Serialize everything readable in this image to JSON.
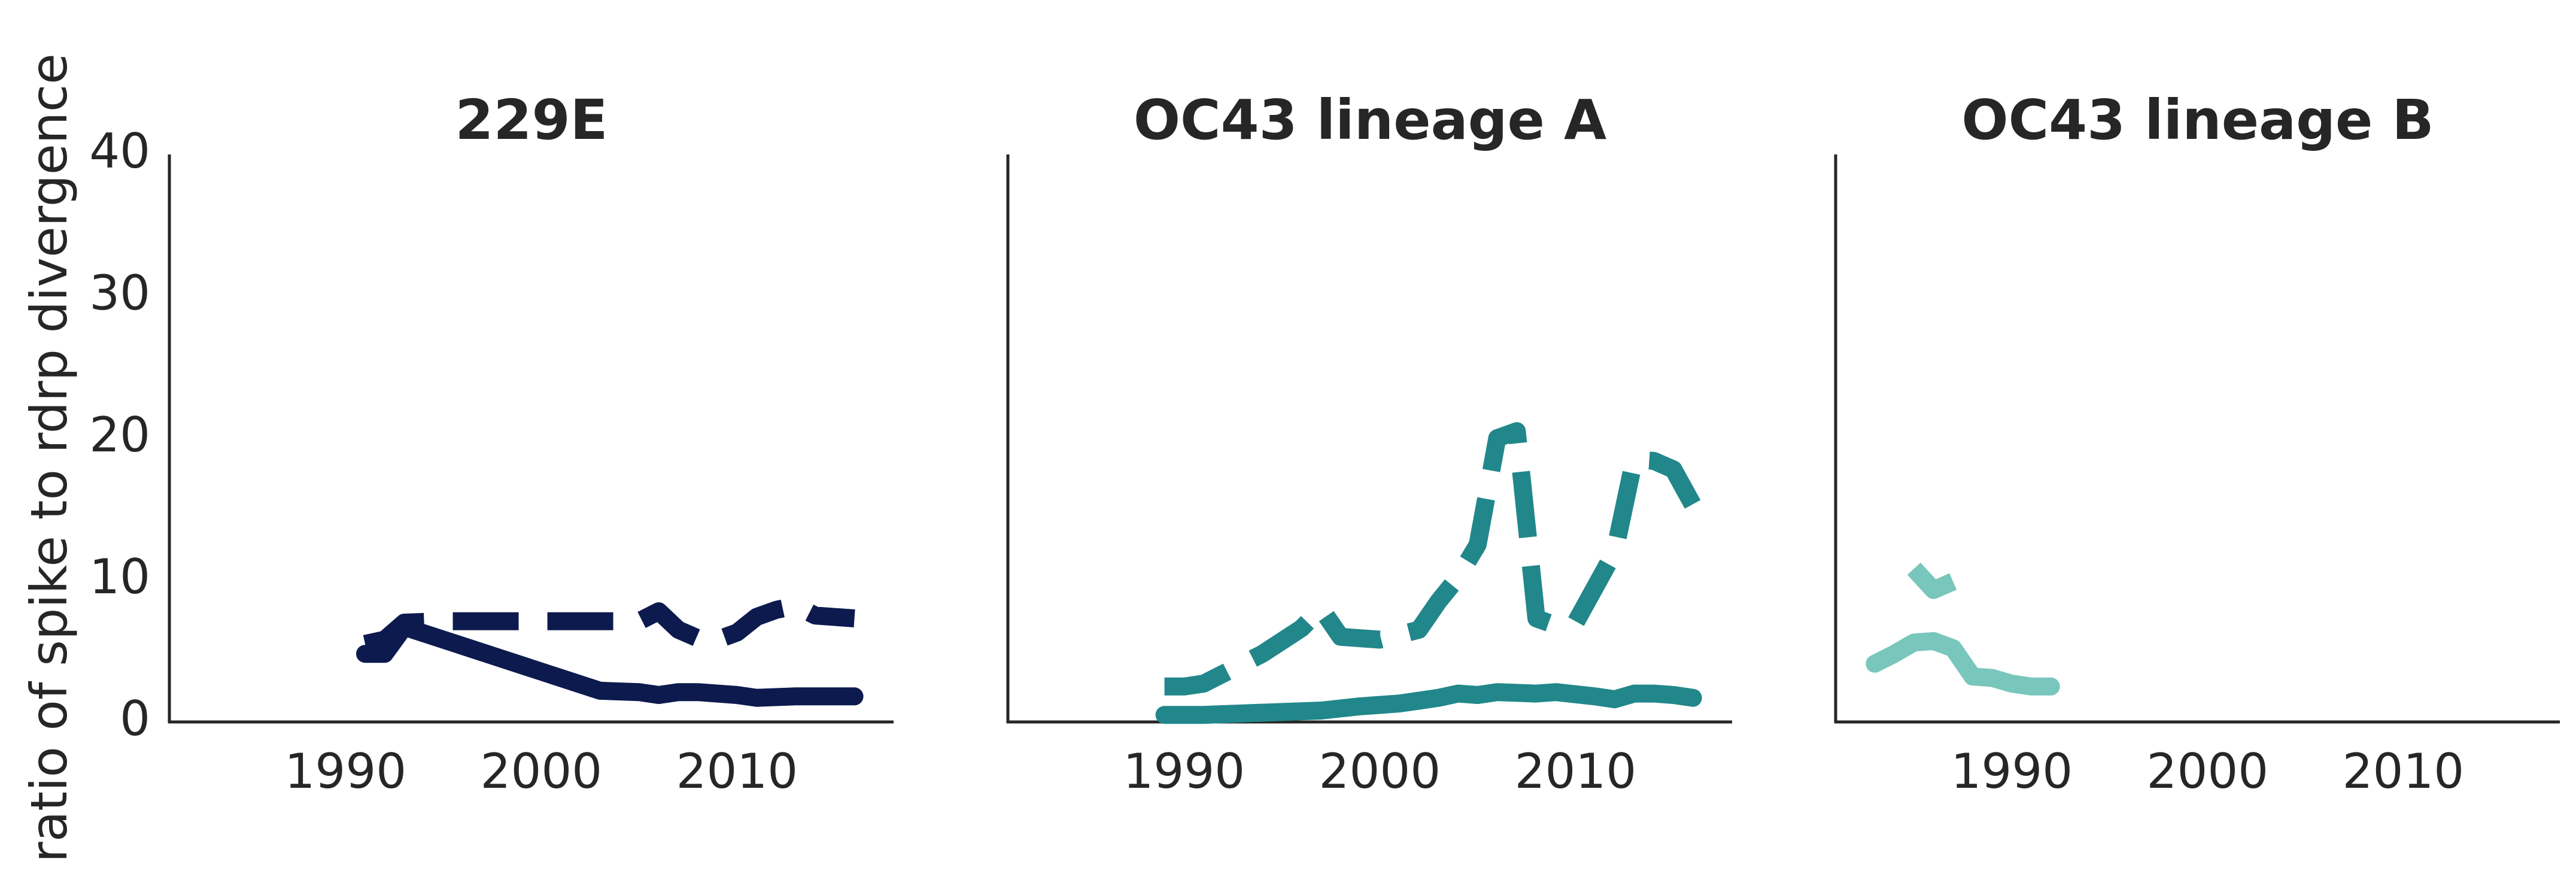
{
  "chart_data": {
    "type": "line",
    "ylabel": "ratio of spike to rdrp divergence",
    "ylim": [
      0,
      40
    ],
    "xlim": [
      1981,
      2018
    ],
    "yticks": [
      0,
      10,
      20,
      30,
      40
    ],
    "xticks": [
      1990,
      2000,
      2010
    ],
    "grid": false,
    "legend": "none",
    "panels": [
      {
        "title": "229E",
        "color": "#0c1a4e",
        "series": [
          {
            "style": "dashed",
            "x": [
              1991,
              1992,
              1993,
              1995,
              2000,
              2003,
              2005,
              2006,
              2007,
              2008,
              2009,
              2010,
              2011,
              2012,
              2013,
              2014,
              2016
            ],
            "y": [
              5.5,
              5.8,
              7.0,
              7.1,
              7.1,
              7.1,
              7.1,
              7.8,
              6.5,
              5.9,
              5.8,
              6.3,
              7.4,
              7.9,
              8.2,
              7.5,
              7.3
            ]
          },
          {
            "style": "solid",
            "x": [
              1991,
              1992,
              1993,
              2003,
              2005,
              2006,
              2007,
              2008,
              2010,
              2011,
              2013,
              2016
            ],
            "y": [
              4.8,
              4.8,
              6.7,
              2.2,
              2.1,
              1.9,
              2.1,
              2.1,
              1.9,
              1.7,
              1.8,
              1.8
            ]
          }
        ]
      },
      {
        "title": "OC43 lineage A",
        "color": "#21878a",
        "series": [
          {
            "style": "dashed",
            "x": [
              1989,
              1990,
              1991,
              1994,
              1996,
              1997,
              1998,
              2000,
              2002,
              2003,
              2004,
              2005,
              2006,
              2007,
              2008,
              2009,
              2010,
              2012,
              2013,
              2014,
              2015,
              2016
            ],
            "y": [
              2.5,
              2.5,
              2.7,
              4.8,
              6.6,
              8.0,
              6.0,
              5.8,
              6.5,
              8.5,
              10.2,
              12.5,
              20.0,
              20.5,
              7.3,
              6.8,
              7.0,
              12.0,
              18.5,
              18.4,
              17.8,
              15.3
            ]
          },
          {
            "style": "solid",
            "x": [
              1989,
              1991,
              1993,
              1995,
              1997,
              1999,
              2001,
              2002,
              2003,
              2004,
              2005,
              2006,
              2008,
              2009,
              2011,
              2012,
              2013,
              2014,
              2015,
              2016
            ],
            "y": [
              0.5,
              0.5,
              0.6,
              0.7,
              0.8,
              1.1,
              1.3,
              1.5,
              1.7,
              2.0,
              1.9,
              2.1,
              2.0,
              2.1,
              1.8,
              1.6,
              2.0,
              2.0,
              1.9,
              1.7
            ]
          }
        ]
      },
      {
        "title": "OC43 lineage B",
        "color": "#79c6bc",
        "series": [
          {
            "style": "dashed",
            "x": [
              1985,
              1986,
              1987
            ],
            "y": [
              10.8,
              9.3,
              9.9
            ]
          },
          {
            "style": "solid",
            "x": [
              1983,
              1984,
              1985,
              1986,
              1987,
              1988,
              1989,
              1990,
              1991,
              1992
            ],
            "y": [
              4.1,
              4.8,
              5.6,
              5.7,
              5.2,
              3.2,
              3.1,
              2.7,
              2.5,
              2.5
            ]
          }
        ]
      }
    ]
  }
}
